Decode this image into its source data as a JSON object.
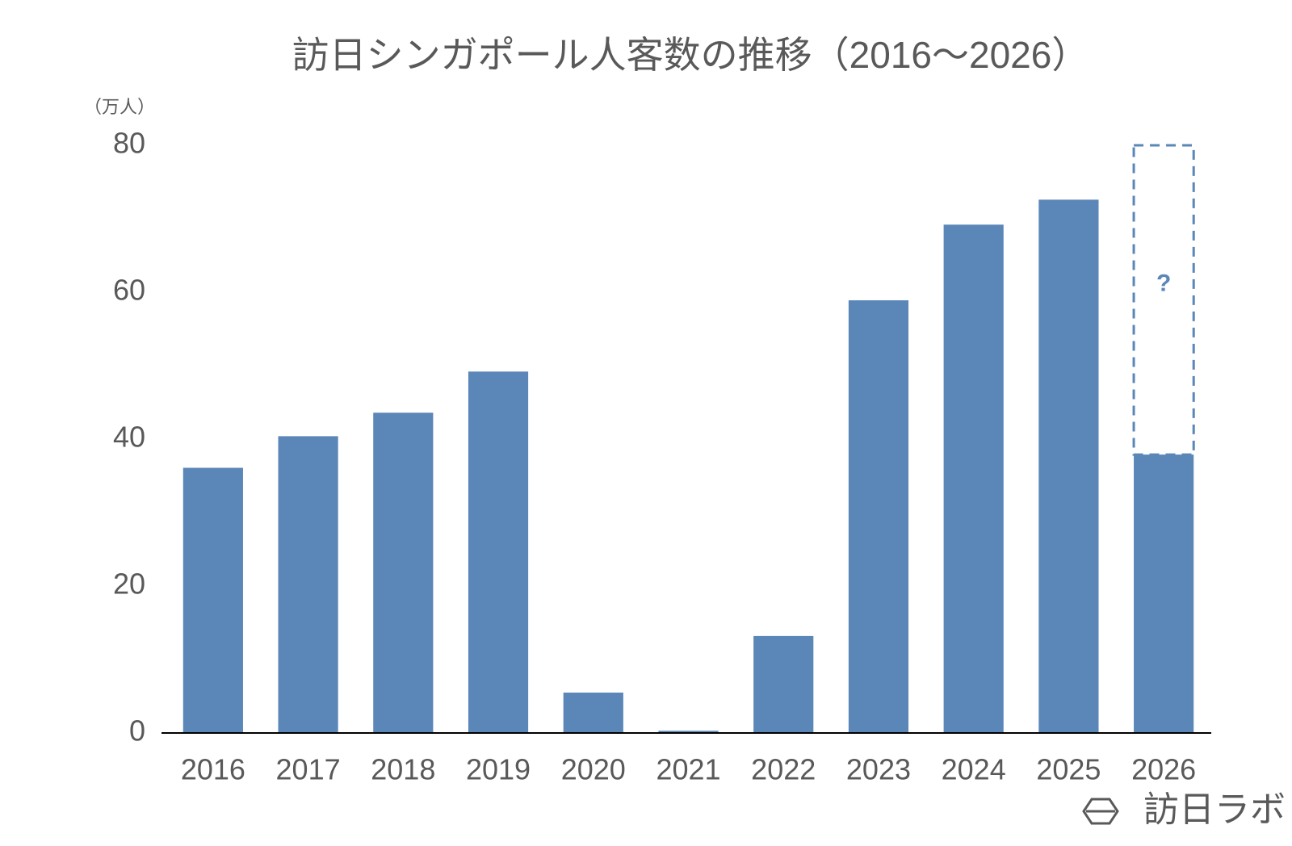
{
  "chart_data": {
    "type": "bar",
    "title": "訪日シンガポール人客数の推移（2016～2026）",
    "y_label": "（万人）",
    "categories": [
      "2016",
      "2017",
      "2018",
      "2019",
      "2020",
      "2021",
      "2022",
      "2023",
      "2024",
      "2025",
      "2026"
    ],
    "values": [
      36.1,
      40.4,
      43.6,
      49.2,
      5.5,
      0.3,
      13.2,
      58.9,
      69.2,
      72.6,
      37.9
    ],
    "color": "#5b86b8",
    "ylim": [
      0,
      80
    ],
    "yticks": [
      0,
      20,
      40,
      60,
      80
    ],
    "grid": false,
    "forecast": {
      "label": "?",
      "range": [
        37.9,
        80
      ]
    },
    "watermark": "訪日ラボ"
  }
}
